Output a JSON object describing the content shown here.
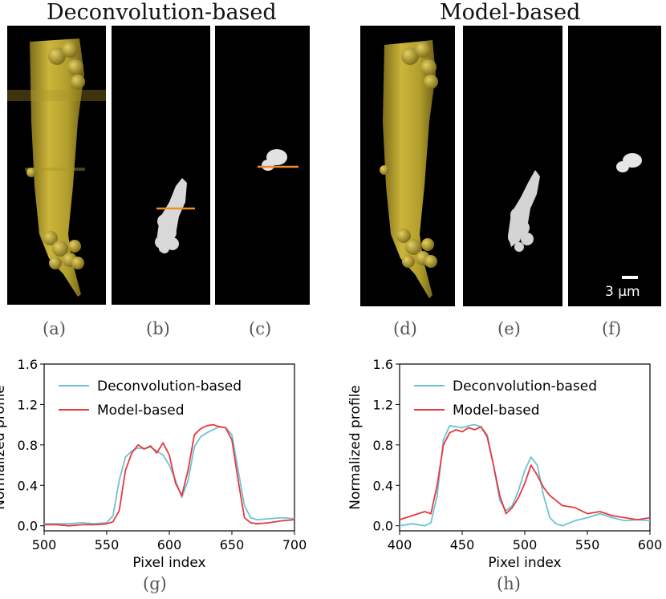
{
  "header": {
    "left_title": "Deconvolution-based",
    "right_title": "Model-based"
  },
  "image_labels": [
    "(a)",
    "(b)",
    "(c)",
    "(d)",
    "(e)",
    "(f)"
  ],
  "scale_bar_label": "3 μm",
  "chart_labels": [
    "(g)",
    "(h)"
  ],
  "colors": {
    "deconvolution": "#6cc3d5",
    "model": "#e8383d",
    "profile_line": "#f08a2c",
    "rendering": "#c8b43a"
  },
  "chart_data": [
    {
      "type": "line",
      "xlabel": "Pixel index",
      "ylabel": "Normalized profile",
      "xlim": [
        500,
        700
      ],
      "ylim": [
        -0.05,
        1.6
      ],
      "xticks": [
        "500",
        "550",
        "600",
        "650",
        "700"
      ],
      "yticks": [
        "0.0",
        "0.4",
        "0.8",
        "1.2",
        "1.6"
      ],
      "legend_position": "top-right",
      "series": [
        {
          "name": "Deconvolution-based",
          "color": "#6cc3d5",
          "x": [
            500,
            510,
            520,
            530,
            540,
            550,
            555,
            560,
            565,
            570,
            575,
            580,
            585,
            590,
            595,
            600,
            605,
            610,
            615,
            620,
            625,
            630,
            635,
            640,
            645,
            650,
            655,
            660,
            665,
            670,
            680,
            690,
            700
          ],
          "y": [
            0.02,
            0.02,
            0.02,
            0.03,
            0.02,
            0.03,
            0.1,
            0.45,
            0.68,
            0.74,
            0.77,
            0.76,
            0.78,
            0.74,
            0.7,
            0.6,
            0.45,
            0.28,
            0.45,
            0.78,
            0.88,
            0.92,
            0.95,
            0.98,
            0.97,
            0.9,
            0.55,
            0.2,
            0.08,
            0.06,
            0.07,
            0.08,
            0.07
          ]
        },
        {
          "name": "Model-based",
          "color": "#e8383d",
          "x": [
            500,
            510,
            520,
            530,
            540,
            550,
            555,
            560,
            565,
            570,
            575,
            580,
            585,
            590,
            595,
            600,
            605,
            610,
            615,
            620,
            625,
            630,
            635,
            640,
            645,
            650,
            655,
            660,
            665,
            670,
            680,
            690,
            700
          ],
          "y": [
            0.01,
            0.01,
            0.0,
            0.01,
            0.01,
            0.02,
            0.04,
            0.15,
            0.55,
            0.72,
            0.8,
            0.76,
            0.79,
            0.72,
            0.82,
            0.7,
            0.42,
            0.3,
            0.55,
            0.9,
            0.96,
            0.99,
            1.0,
            0.98,
            0.97,
            0.85,
            0.45,
            0.08,
            0.03,
            0.02,
            0.03,
            0.05,
            0.06
          ]
        }
      ]
    },
    {
      "type": "line",
      "xlabel": "Pixel index",
      "ylabel": "Normalized profile",
      "xlim": [
        400,
        600
      ],
      "ylim": [
        -0.05,
        1.6
      ],
      "xticks": [
        "400",
        "450",
        "500",
        "550",
        "600"
      ],
      "yticks": [
        "0.0",
        "0.4",
        "0.8",
        "1.2",
        "1.6"
      ],
      "legend_position": "top-right",
      "series": [
        {
          "name": "Deconvolution-based",
          "color": "#6cc3d5",
          "x": [
            400,
            410,
            420,
            425,
            430,
            435,
            440,
            445,
            450,
            455,
            460,
            465,
            470,
            475,
            480,
            485,
            490,
            495,
            500,
            505,
            510,
            515,
            520,
            525,
            530,
            540,
            550,
            560,
            570,
            580,
            590,
            600
          ],
          "y": [
            0.0,
            0.02,
            0.0,
            0.03,
            0.3,
            0.85,
            0.99,
            0.98,
            0.97,
            0.99,
            1.0,
            0.98,
            0.9,
            0.6,
            0.25,
            0.15,
            0.2,
            0.35,
            0.55,
            0.68,
            0.6,
            0.3,
            0.08,
            0.02,
            0.0,
            0.05,
            0.08,
            0.12,
            0.08,
            0.05,
            0.06,
            0.05
          ]
        },
        {
          "name": "Model-based",
          "color": "#e8383d",
          "x": [
            400,
            410,
            420,
            425,
            430,
            435,
            440,
            445,
            450,
            455,
            460,
            465,
            470,
            475,
            480,
            485,
            490,
            495,
            500,
            505,
            510,
            515,
            520,
            525,
            530,
            540,
            550,
            560,
            570,
            580,
            590,
            600
          ],
          "y": [
            0.06,
            0.1,
            0.14,
            0.12,
            0.4,
            0.8,
            0.92,
            0.95,
            0.93,
            0.97,
            0.95,
            0.98,
            0.88,
            0.6,
            0.3,
            0.12,
            0.18,
            0.28,
            0.42,
            0.6,
            0.5,
            0.38,
            0.3,
            0.25,
            0.2,
            0.18,
            0.12,
            0.14,
            0.1,
            0.08,
            0.06,
            0.08
          ]
        }
      ]
    }
  ]
}
